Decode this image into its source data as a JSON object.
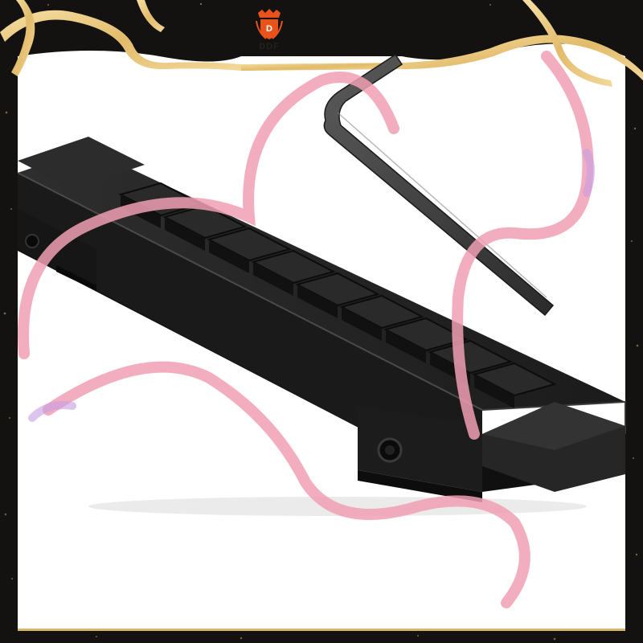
{
  "brand": {
    "name": "DDF",
    "emblem_letter": "D",
    "emblem_color": "#e8531c"
  },
  "product": {
    "items": [
      "picatinny-rail-adapter",
      "hex-key-wrench"
    ]
  },
  "colors": {
    "background": "#ffffff",
    "frame_dark": "#141210",
    "gold_ribbon": "#e9c97f",
    "pink_ribbon": "#f0a0b4",
    "rail_metal": "#1e1e1e"
  }
}
